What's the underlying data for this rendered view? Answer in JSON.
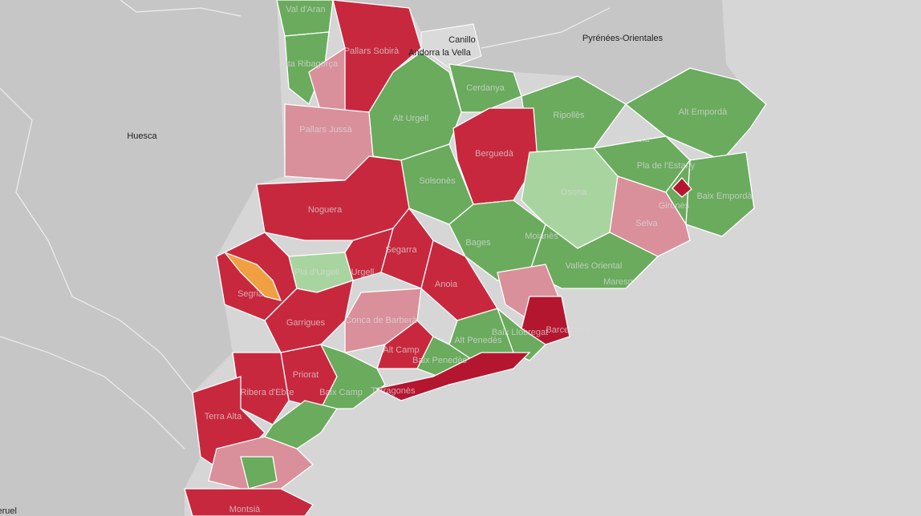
{
  "map": {
    "places": [
      "Huesca",
      "Canillo",
      "Andorra la Vella",
      "Pyrénées-Orientales",
      "Teruel"
    ],
    "regions": [
      "Val d'Aran",
      "Pallars Sobirà",
      "Alta Ribagorça",
      "Pallars Jussà",
      "Alt Urgell",
      "Cerdanya",
      "Ripollès",
      "Alt Empordà",
      "Berguedà",
      "Garrotxa",
      "Pla de l'Estany",
      "Solsonès",
      "Osona",
      "Gironès",
      "Baix Empordà",
      "Noguera",
      "Selva",
      "Bages",
      "Moianès",
      "Segarra",
      "Pla d'Urgell",
      "Urgell",
      "Vallès Oriental",
      "Segrià",
      "Anoia",
      "Maresme",
      "Conca de Barberà",
      "Garrigues",
      "Barcelonès",
      "Alt Penedès",
      "Baix Llobregat",
      "Alt Camp",
      "Baix Penedès",
      "Priorat",
      "Ribera d'Ebre",
      "Baix Camp",
      "Tarragonès",
      "Terra Alta",
      "Montsià"
    ]
  }
}
